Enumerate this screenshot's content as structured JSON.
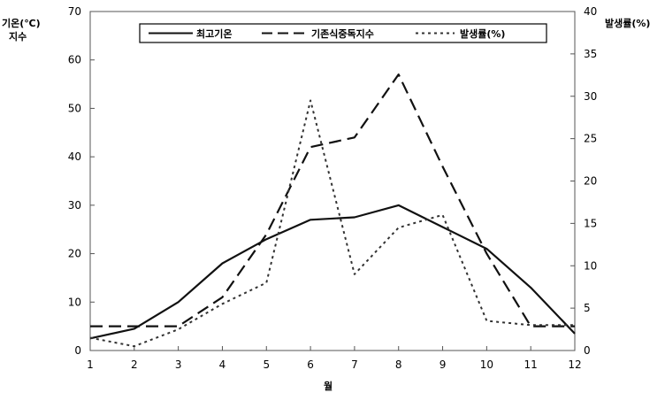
{
  "chart_data": {
    "type": "line",
    "title": "",
    "xlabel": "월",
    "ylabel_left": [
      "기온(℃)",
      "지수"
    ],
    "ylabel_right": "발생률(%)",
    "x": [
      1,
      2,
      3,
      4,
      5,
      6,
      7,
      8,
      9,
      10,
      11,
      12
    ],
    "ylim_left": [
      0,
      70
    ],
    "yticks_left": [
      0,
      10,
      20,
      30,
      40,
      50,
      60,
      70
    ],
    "ylim_right": [
      0,
      40
    ],
    "yticks_right": [
      0,
      5,
      10,
      15,
      20,
      25,
      30,
      35,
      40
    ],
    "legend_position": "top-center",
    "grid": false,
    "series": [
      {
        "name": "최고기온",
        "axis": "left",
        "style": "solid",
        "values": [
          2.5,
          4.5,
          10,
          18,
          23,
          27,
          27.5,
          30,
          25.5,
          21,
          13,
          3.5
        ]
      },
      {
        "name": "기존식중독지수",
        "axis": "left",
        "style": "long-dash",
        "values": [
          5,
          5,
          5,
          11,
          24,
          42,
          44,
          57,
          38,
          20,
          5,
          5
        ]
      },
      {
        "name": "발생률(%)",
        "axis": "right",
        "style": "dotted",
        "values": [
          1.5,
          0.5,
          2.5,
          5.5,
          8,
          29.5,
          9,
          14.5,
          16,
          3.5,
          3,
          3
        ]
      }
    ]
  }
}
